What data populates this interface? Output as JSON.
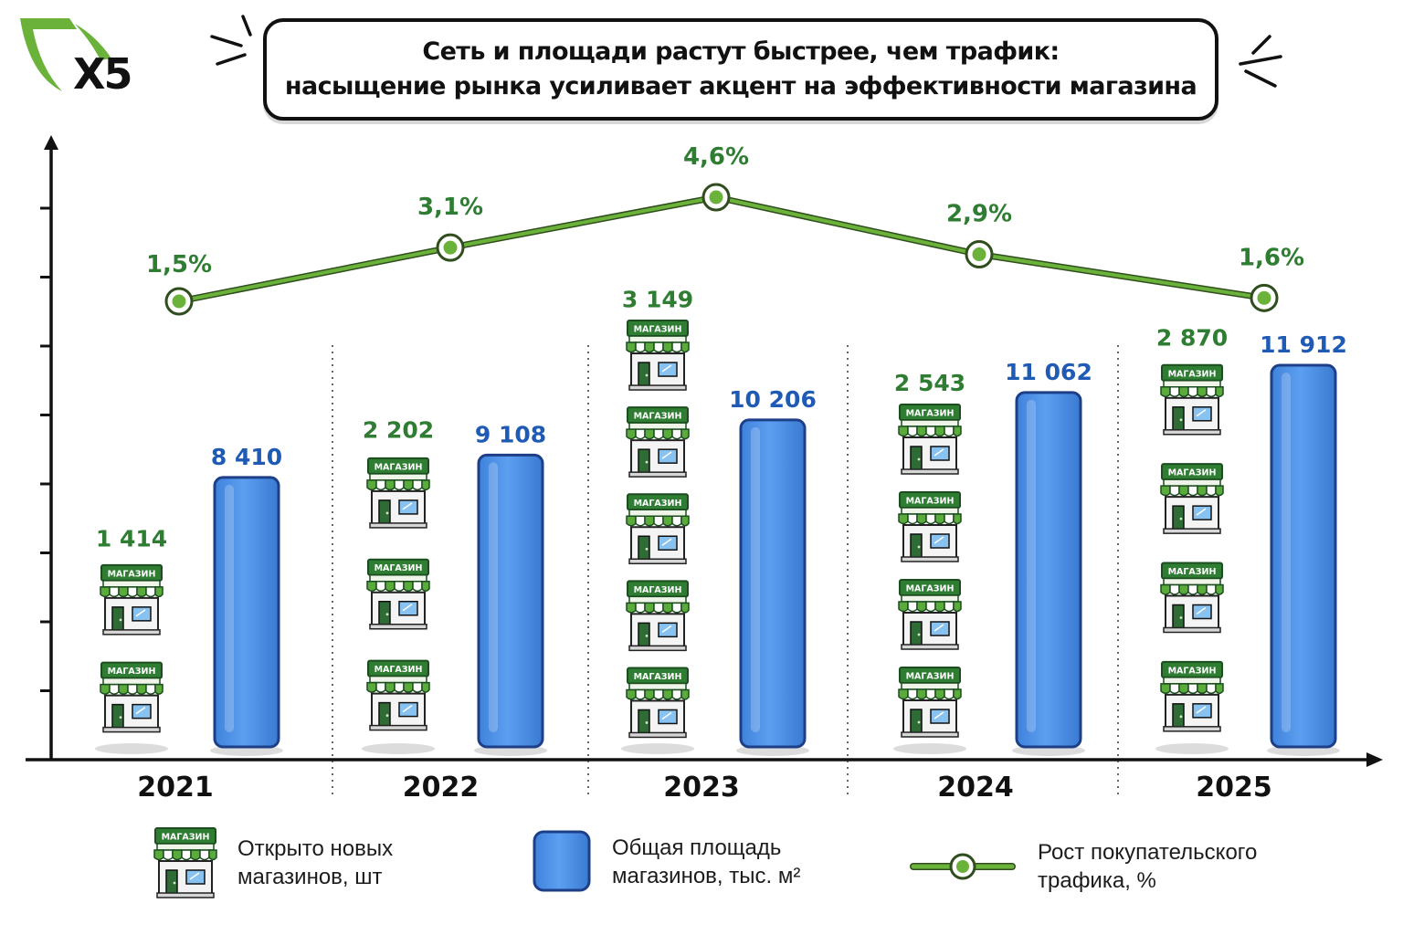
{
  "brand": {
    "logo_text": "X5",
    "accent_color": "#6ab23a"
  },
  "title": {
    "line1": "Сеть и площади растут быстрее, чем трафик:",
    "line2": "насыщение рынка усиливает акцент на эффективности магазина"
  },
  "colors": {
    "store_green": "#2e7d32",
    "bar_blue": "#4a8fe4",
    "bar_blue_dark": "#1d3f88",
    "line_green": "#6ab23a",
    "label_green": "#2e7d32",
    "label_blue": "#1f5bb5"
  },
  "chart_data": {
    "type": "bar",
    "categories": [
      "2021",
      "2022",
      "2023",
      "2024",
      "2025"
    ],
    "series": [
      {
        "name": "Открыто новых магазинов, шт",
        "kind": "pictogram",
        "values": [
          1414,
          2202,
          3149,
          2543,
          2870
        ],
        "labels": [
          "1 414",
          "2 202",
          "3 149",
          "2 543",
          "2 870"
        ]
      },
      {
        "name": "Общая площадь магазинов, тыс. м²",
        "kind": "bar",
        "values": [
          8410,
          9108,
          10206,
          11062,
          11912
        ],
        "labels": [
          "8 410",
          "9 108",
          "10 206",
          "11 062",
          "11 912"
        ]
      },
      {
        "name": "Рост покупательского трафика, %",
        "kind": "line",
        "values": [
          1.5,
          3.1,
          4.6,
          2.9,
          1.6
        ],
        "labels": [
          "1,5%",
          "3,1%",
          "4,6%",
          "2,9%",
          "1,6%"
        ]
      }
    ],
    "store_sign_text": "МАГАЗИН",
    "grid": false,
    "legend_position": "bottom"
  },
  "legend": [
    {
      "icon": "store-icon",
      "line1": "Открыто новых",
      "line2": "магазинов, шт"
    },
    {
      "icon": "blue-bar-icon",
      "line1": "Общая площадь",
      "line2": "магазинов, тыс. м²"
    },
    {
      "icon": "line-marker-icon",
      "line1": "Рост покупательского",
      "line2": "трафика, %"
    }
  ]
}
